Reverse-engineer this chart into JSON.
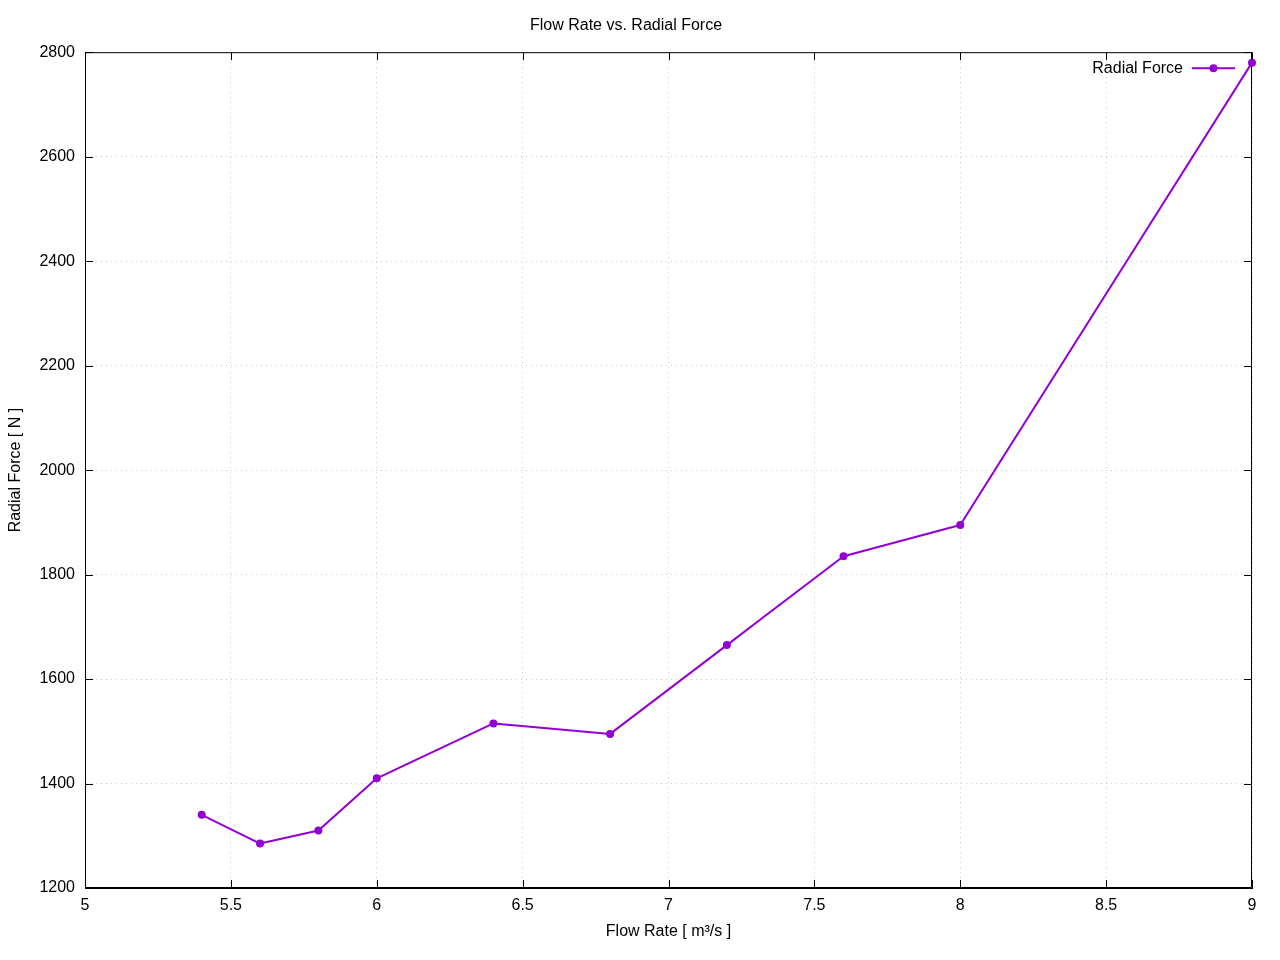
{
  "chart_data": {
    "type": "line",
    "title": "Flow Rate vs. Radial Force",
    "xlabel": "Flow Rate [ m³/s ]",
    "ylabel": "Radial Force [ N ]",
    "x": [
      5.4,
      5.6,
      5.8,
      6.0,
      6.4,
      6.8,
      7.2,
      7.6,
      8.0,
      9.0
    ],
    "series": [
      {
        "name": "Radial Force",
        "color": "#9400d3",
        "values": [
          1340,
          1285,
          1310,
          1410,
          1515,
          1495,
          1665,
          1835,
          1895,
          2780
        ]
      }
    ],
    "xlim": [
      5,
      9
    ],
    "xticks": [
      5,
      5.5,
      6,
      6.5,
      7,
      7.5,
      8,
      8.5,
      9
    ],
    "ylim": [
      1200,
      2800
    ],
    "yticks": [
      1200,
      1400,
      1600,
      1800,
      2000,
      2200,
      2400,
      2600,
      2800
    ],
    "grid": true,
    "legend": "top right",
    "marker": "circle",
    "line_style": "solid"
  }
}
